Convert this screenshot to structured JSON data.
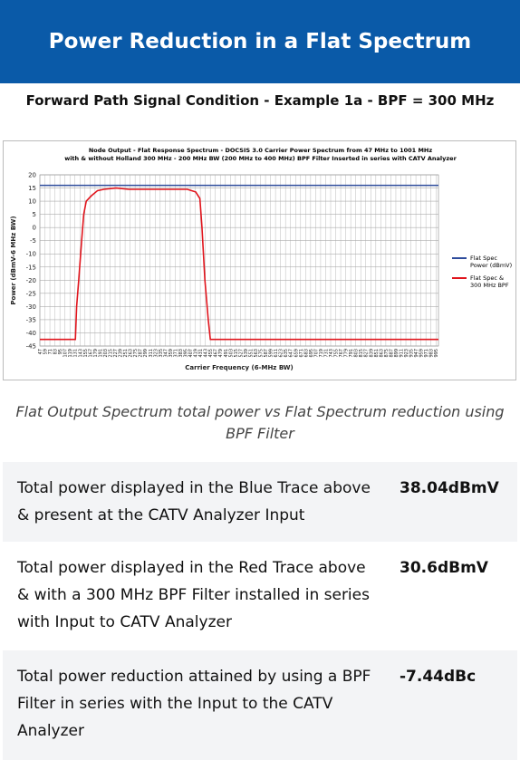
{
  "header": {
    "title": "Power Reduction in a Flat Spectrum"
  },
  "subtitle": "Forward Path Signal Condition - Example 1a - BPF = 300 MHz",
  "chart_data": {
    "type": "line",
    "title_lines": [
      "Node  Output - Flat Response Spectrum - DOCSIS 3.0 Carrier Power Spectrum from 47 MHz to 1001 MHz",
      "with & without Holland 300 MHz - 200 MHz BW (200 MHz to 400 MHz) BPF Filter Inserted in series with CATV Analyzer"
    ],
    "x_label": "Carrier Frequency (6-MHz BW)",
    "y_label": "Power (dBmV-6 MHz BW)",
    "xlim": [
      47,
      1001
    ],
    "ylim": [
      -45,
      20
    ],
    "yticks": [
      -45,
      -40,
      -35,
      -30,
      -25,
      -20,
      -15,
      -10,
      -5,
      0,
      5,
      10,
      15,
      20
    ],
    "xticks": [
      47,
      59,
      71,
      83,
      95,
      107,
      119,
      131,
      143,
      155,
      167,
      179,
      191,
      203,
      215,
      227,
      239,
      251,
      263,
      275,
      287,
      299,
      311,
      323,
      335,
      347,
      359,
      371,
      383,
      395,
      407,
      419,
      431,
      443,
      455,
      467,
      479,
      491,
      503,
      515,
      527,
      539,
      551,
      563,
      575,
      587,
      599,
      611,
      623,
      635,
      647,
      659,
      671,
      683,
      695,
      707,
      719,
      731,
      743,
      755,
      767,
      779,
      791,
      803,
      815,
      827,
      839,
      851,
      863,
      875,
      887,
      899,
      911,
      923,
      935,
      947,
      959,
      971,
      983,
      995
    ],
    "grid": true,
    "legend": "right",
    "series": [
      {
        "name": "Flat Spec Power (dBmV)",
        "color": "#2e4c9c",
        "x": [
          47,
          1001
        ],
        "values": [
          16,
          16
        ]
      },
      {
        "name": "Flat Spec & 300 MHz BPF",
        "color": "#e0141c",
        "x": [
          47,
          132,
          135,
          140,
          147,
          152,
          158,
          170,
          185,
          200,
          230,
          260,
          340,
          400,
          420,
          430,
          435,
          442,
          450,
          455,
          1001
        ],
        "values": [
          -42.5,
          -42.5,
          -30,
          -20,
          -5,
          5,
          10,
          12,
          14,
          14.5,
          15,
          14.5,
          14.5,
          14.5,
          13.5,
          11,
          0,
          -20,
          -35,
          -42.5,
          -42.5
        ]
      }
    ]
  },
  "caption": "Flat Output Spectrum total power vs Flat Spectrum reduction using BPF Filter",
  "table": {
    "rows": [
      [
        "Total power displayed in the Blue Trace above & present at the CATV Analyzer Input",
        "38.04dBmV"
      ],
      [
        "Total power displayed in the Red Trace above & with a 300 MHz BPF Filter installed in series with Input to CATV Analyzer",
        "30.6dBmV"
      ],
      [
        "Total power reduction attained by using a BPF Filter in series with the Input to the CATV Analyzer",
        "-7.44dBc"
      ]
    ]
  }
}
